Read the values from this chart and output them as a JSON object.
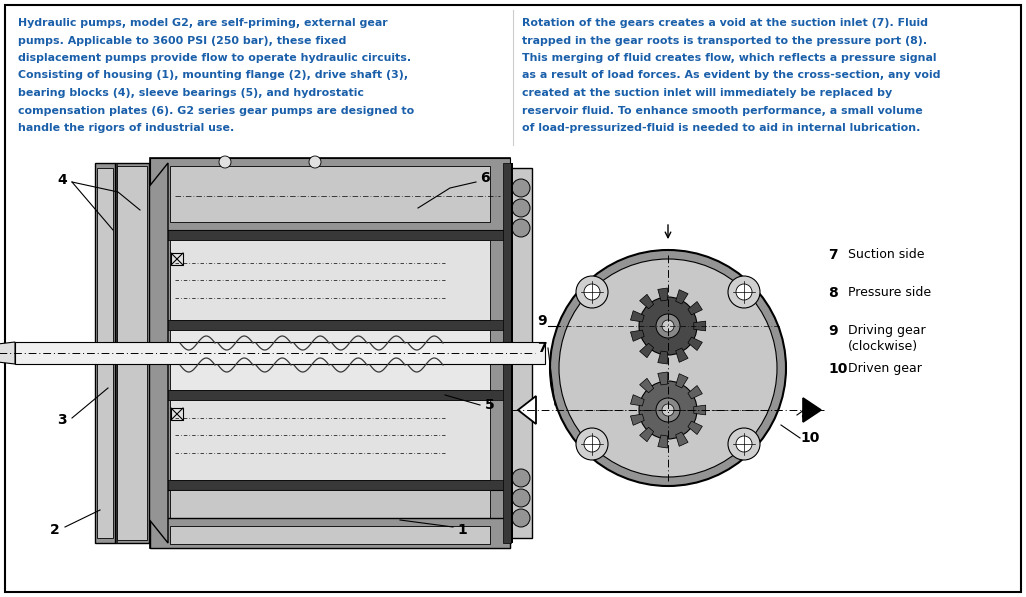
{
  "bg_color": "#ffffff",
  "border_color": "#000000",
  "blue_color": "#1a5faa",
  "gray_light": "#c8c8c8",
  "gray_mid": "#949494",
  "gray_dark": "#606060",
  "gray_darkest": "#383838",
  "left_lines": [
    "Hydraulic pumps, model G2, are self-priming, external gear",
    "pumps. Applicable to 3600 PSI (250 bar), these fixed",
    "displacement pumps provide flow to operate hydraulic circuits.",
    "Consisting of housing (1), mounting flange (2), drive shaft (3),",
    "bearing blocks (4), sleeve bearings (5), and hydrostatic",
    "compensation plates (6). G2 series gear pumps are designed to",
    "handle the rigors of industrial use."
  ],
  "right_lines": [
    "Rotation of the gears creates a void at the suction inlet (7). Fluid",
    "trapped in the gear roots is transported to the pressure port (8).",
    "This merging of fluid creates flow, which reflects a pressure signal",
    "as a result of load forces. As evident by the cross-section, any void",
    "created at the suction inlet will immediately be replaced by",
    "reservoir fluid. To enhance smooth performance, a small volume",
    "of load-pressurized-fluid is needed to aid in internal lubrication."
  ],
  "legend": [
    {
      "num": "7",
      "label": "Suction side"
    },
    {
      "num": "8",
      "label": "Pressure side"
    },
    {
      "num": "9",
      "label": "Driving gear\n(clockwise)"
    },
    {
      "num": "10",
      "label": "Driven gear"
    }
  ]
}
